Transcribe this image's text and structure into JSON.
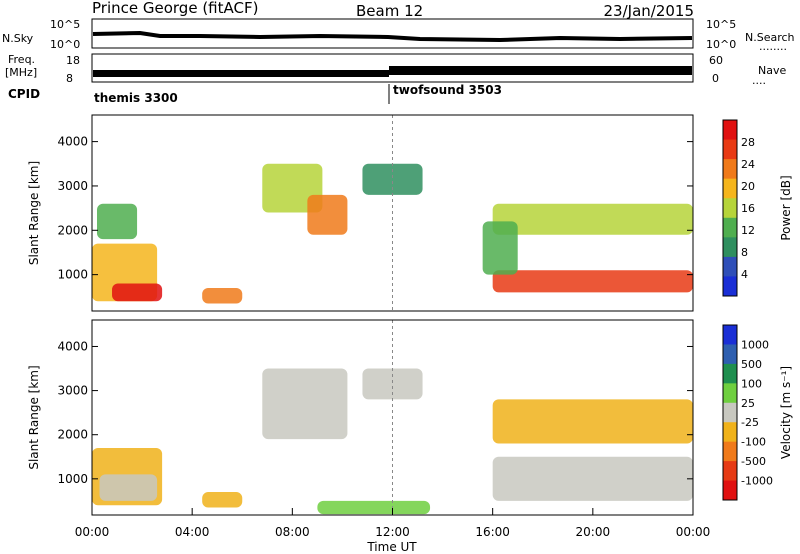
{
  "header": {
    "station": "Prince George (fitACF)",
    "beam": "Beam 12",
    "date": "23/Jan/2015"
  },
  "strip_labels": {
    "nsky": "N.Sky",
    "nsearch": "N.Search",
    "nsearch_dots": "........",
    "freq1": "Freq.",
    "freq2": "[MHz]",
    "nave": "Nave",
    "nave_dots": "....",
    "cpid": "CPID",
    "noise_top": "10^5",
    "noise_bot": "10^0",
    "noise_top_r": "10^5",
    "noise_bot_r": "10^0",
    "freq_top": "18",
    "freq_bot": "8",
    "nave_top": "60",
    "nave_bot": "0"
  },
  "cpid_segments": [
    {
      "label": "themis 3300",
      "start_hour": 0
    },
    {
      "label": "twofsound 3503",
      "start_hour": 12
    }
  ],
  "x_axis": {
    "title": "Time UT",
    "ticks": [
      "00:00",
      "04:00",
      "08:00",
      "12:00",
      "16:00",
      "20:00",
      "00:00"
    ]
  },
  "colors": {
    "power": [
      "#1a2fd6",
      "#2f4fb8",
      "#2f8f5f",
      "#4fae4f",
      "#b6d43a",
      "#f5b51c",
      "#f07a1a",
      "#e83a14",
      "#e01010"
    ],
    "velocity": [
      "#1a2fd6",
      "#2e5fb0",
      "#1f8f4f",
      "#6fcf3f",
      "#c8c8c0",
      "#f0b21a",
      "#f07a1a",
      "#e63a14",
      "#e01010"
    ]
  },
  "chart_data": [
    {
      "type": "heatmap",
      "panel": "power",
      "ylabel": "Slant Range [km]",
      "xlabel": "Time UT",
      "xlim": [
        0,
        24
      ],
      "ylim": [
        180,
        4600
      ],
      "yticks": [
        1000,
        2000,
        3000,
        4000
      ],
      "colorbar": {
        "label": "Power [dB]",
        "ticks": [
          "28",
          "24",
          "20",
          "16",
          "12",
          "8",
          "4"
        ],
        "range": [
          0,
          30
        ]
      },
      "regions": [
        {
          "t0": 0.0,
          "t1": 2.6,
          "r0": 400,
          "r1": 1700,
          "level": 18
        },
        {
          "t0": 0.8,
          "t1": 2.8,
          "r0": 400,
          "r1": 800,
          "level": 28
        },
        {
          "t0": 0.2,
          "t1": 1.8,
          "r0": 1800,
          "r1": 2600,
          "level": 10
        },
        {
          "t0": 4.4,
          "t1": 6.0,
          "r0": 350,
          "r1": 700,
          "level": 22
        },
        {
          "t0": 6.8,
          "t1": 9.2,
          "r0": 2400,
          "r1": 3500,
          "level": 14
        },
        {
          "t0": 8.6,
          "t1": 10.2,
          "r0": 1900,
          "r1": 2800,
          "level": 20
        },
        {
          "t0": 10.8,
          "t1": 13.2,
          "r0": 2800,
          "r1": 3500,
          "level": 8
        },
        {
          "t0": 16.0,
          "t1": 24.0,
          "r0": 600,
          "r1": 1100,
          "level": 24
        },
        {
          "t0": 16.0,
          "t1": 24.0,
          "r0": 1900,
          "r1": 2600,
          "level": 16
        },
        {
          "t0": 15.6,
          "t1": 17.0,
          "r0": 1000,
          "r1": 2200,
          "level": 12
        }
      ]
    },
    {
      "type": "heatmap",
      "panel": "velocity",
      "ylabel": "Slant Range [km]",
      "xlabel": "Time UT",
      "xlim": [
        0,
        24
      ],
      "ylim": [
        180,
        4600
      ],
      "yticks": [
        1000,
        2000,
        3000,
        4000
      ],
      "colorbar": {
        "label": "Velocity [m s⁻¹]",
        "ticks": [
          "1000",
          "500",
          "100",
          "25",
          "-25",
          "-100",
          "-500",
          "-1000"
        ],
        "range": [
          -1000,
          1000
        ]
      },
      "regions": [
        {
          "t0": 0.0,
          "t1": 2.8,
          "r0": 400,
          "r1": 1700,
          "level": -150
        },
        {
          "t0": 0.3,
          "t1": 2.6,
          "r0": 500,
          "r1": 1100,
          "level": 0
        },
        {
          "t0": 4.4,
          "t1": 6.0,
          "r0": 350,
          "r1": 700,
          "level": -200
        },
        {
          "t0": 6.8,
          "t1": 10.2,
          "r0": 1900,
          "r1": 3500,
          "level": 0
        },
        {
          "t0": 10.8,
          "t1": 13.2,
          "r0": 2800,
          "r1": 3500,
          "level": 0
        },
        {
          "t0": 16.0,
          "t1": 24.0,
          "r0": 500,
          "r1": 1500,
          "level": 0
        },
        {
          "t0": 16.0,
          "t1": 24.0,
          "r0": 1800,
          "r1": 2800,
          "level": -300
        },
        {
          "t0": 9.0,
          "t1": 13.5,
          "r0": 200,
          "r1": 500,
          "level": 120
        }
      ]
    }
  ]
}
